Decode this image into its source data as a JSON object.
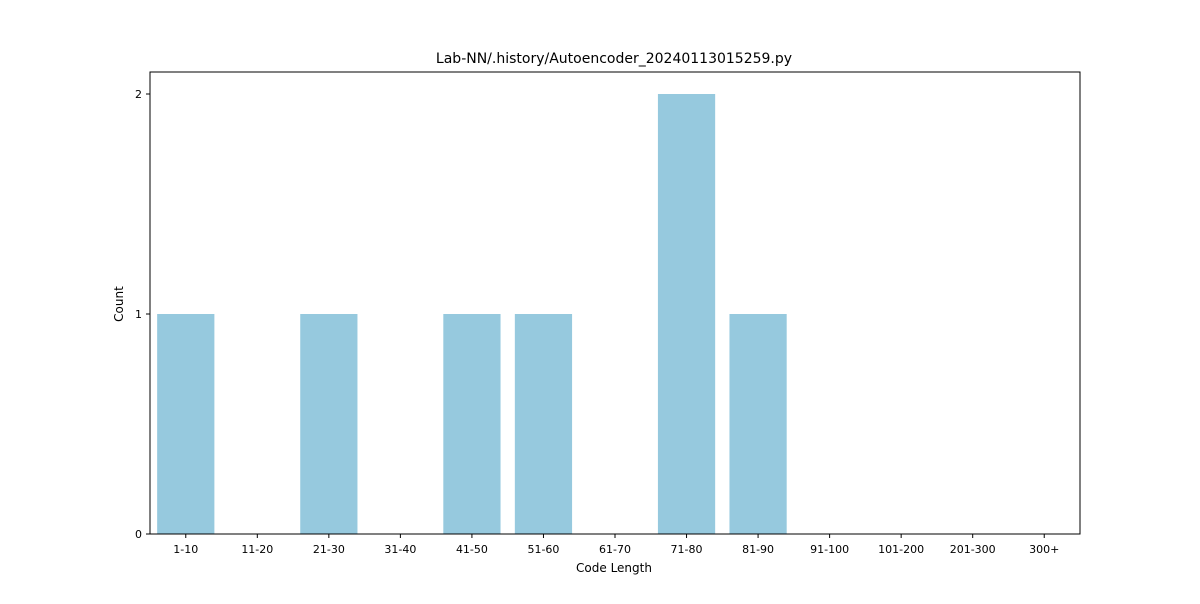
{
  "chart_data": {
    "type": "bar",
    "title": "Lab-NN/.history/Autoencoder_20240113015259.py",
    "xlabel": "Code Length",
    "ylabel": "Count",
    "categories": [
      "1-10",
      "11-20",
      "21-30",
      "31-40",
      "41-50",
      "51-60",
      "61-70",
      "71-80",
      "81-90",
      "91-100",
      "101-200",
      "201-300",
      "300+"
    ],
    "values": [
      1,
      0,
      1,
      0,
      1,
      1,
      0,
      2,
      1,
      0,
      0,
      0,
      0
    ],
    "ylim": [
      0,
      2.1
    ],
    "yticks": [
      0,
      1,
      2
    ],
    "grid": false,
    "legend": "none",
    "colors": {
      "bar": "#96c9de",
      "axis": "#000000",
      "background": "#ffffff"
    }
  }
}
